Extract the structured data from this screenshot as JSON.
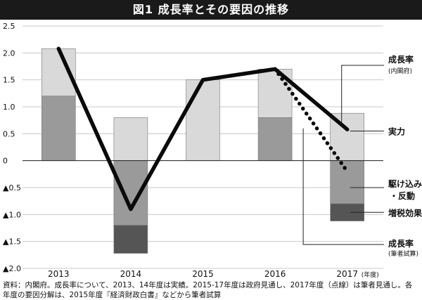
{
  "chart_data": {
    "type": "bar",
    "title": "図1 成長率とその要因の推移",
    "categories": [
      "2013",
      "2014",
      "2015",
      "2016",
      "2017"
    ],
    "x_unit": "(年度)",
    "ylim": [
      -2.0,
      2.5
    ],
    "yticks": [
      {
        "value": 2.5,
        "label": "2.5"
      },
      {
        "value": 2.0,
        "label": "2.0"
      },
      {
        "value": 1.5,
        "label": "1.5"
      },
      {
        "value": 1.0,
        "label": "1.0"
      },
      {
        "value": 0.5,
        "label": "0.5"
      },
      {
        "value": 0,
        "label": "0"
      },
      {
        "value": -0.5,
        "label": "▲0.5"
      },
      {
        "value": -1.0,
        "label": "▲1.0"
      },
      {
        "value": -1.5,
        "label": "▲1.5"
      },
      {
        "value": -2.0,
        "label": "▲2.0"
      }
    ],
    "grid": true,
    "stacked_segments": [
      {
        "category": "2013",
        "from": 0,
        "to": 1.2,
        "shade": "#9a9a9a"
      },
      {
        "category": "2013",
        "from": 1.2,
        "to": 2.08,
        "shade": "#d9d9d9"
      },
      {
        "category": "2014",
        "from": 0,
        "to": 0.8,
        "shade": "#d9d9d9"
      },
      {
        "category": "2014",
        "from": 0,
        "to": -1.2,
        "shade": "#9a9a9a"
      },
      {
        "category": "2014",
        "from": -1.2,
        "to": -1.72,
        "shade": "#555555"
      },
      {
        "category": "2015",
        "from": 0,
        "to": 1.5,
        "shade": "#d9d9d9"
      },
      {
        "category": "2016",
        "from": 0,
        "to": 0.8,
        "shade": "#9a9a9a"
      },
      {
        "category": "2016",
        "from": 0.8,
        "to": 1.7,
        "shade": "#d9d9d9"
      },
      {
        "category": "2017",
        "from": 0,
        "to": 0.88,
        "shade": "#d9d9d9"
      },
      {
        "category": "2017",
        "from": 0,
        "to": -0.8,
        "shade": "#9a9a9a"
      },
      {
        "category": "2017",
        "from": -0.8,
        "to": -1.12,
        "shade": "#555555"
      }
    ],
    "series": [
      {
        "name_line1": "成長率",
        "name_line2": "(内閣府)",
        "style": "solid",
        "points": [
          {
            "x": "2013",
            "y": 2.08
          },
          {
            "x": "2014",
            "y": -0.9
          },
          {
            "x": "2015",
            "y": 1.5
          },
          {
            "x": "2016",
            "y": 1.7
          },
          {
            "x": "2017",
            "y": 0.58
          }
        ]
      },
      {
        "name_line1": "成長率",
        "name_line2": "(筆者試算)",
        "style": "dotted",
        "points": [
          {
            "x": "2016",
            "y": 1.7
          },
          {
            "x": "2017",
            "y": -0.2
          }
        ]
      }
    ],
    "component_labels": {
      "real": "実力",
      "rush_line1": "駆け込み",
      "rush_line2": "・反動",
      "tax": "増税効果"
    },
    "source": "資料：内閣府。成長率について、2013、14年度は実績。2015-17年度は政府見通し、2017年度（点線）は筆者見通し。各年度の要因分解は、2015年度『経済財政白書』などから筆者試算"
  }
}
